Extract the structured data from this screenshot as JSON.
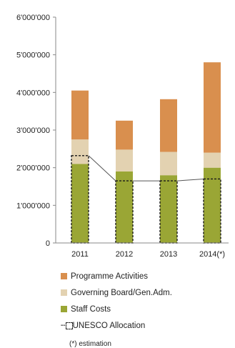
{
  "chart_data": {
    "type": "bar",
    "stacked": true,
    "categories": [
      "2011",
      "2012",
      "2013",
      "2014(*)"
    ],
    "series": [
      {
        "name": "Staff Costs",
        "color": "#9aa635",
        "values": [
          2100000,
          1900000,
          1800000,
          2000000
        ]
      },
      {
        "name": "Governing Board/Gen.Adm.",
        "color": "#e3d2b1",
        "values": [
          650000,
          580000,
          620000,
          400000
        ]
      },
      {
        "name": "Programme Activities",
        "color": "#d98f4e",
        "values": [
          1300000,
          770000,
          1400000,
          2400000
        ]
      }
    ],
    "allocation": {
      "name": "UNESCO  Allocation",
      "values": [
        2320000,
        1650000,
        1650000,
        1700000
      ]
    },
    "ylim": [
      0,
      6000000
    ],
    "yticks": [
      0,
      1000000,
      2000000,
      3000000,
      4000000,
      5000000,
      6000000
    ],
    "ytick_labels": [
      "0",
      "1'000'000",
      "2'000'000",
      "3'000'000",
      "4'000'000",
      "5'000'000",
      "6'000'000"
    ],
    "grid": false,
    "legend_position": "bottom",
    "note": "(*) estimation"
  }
}
